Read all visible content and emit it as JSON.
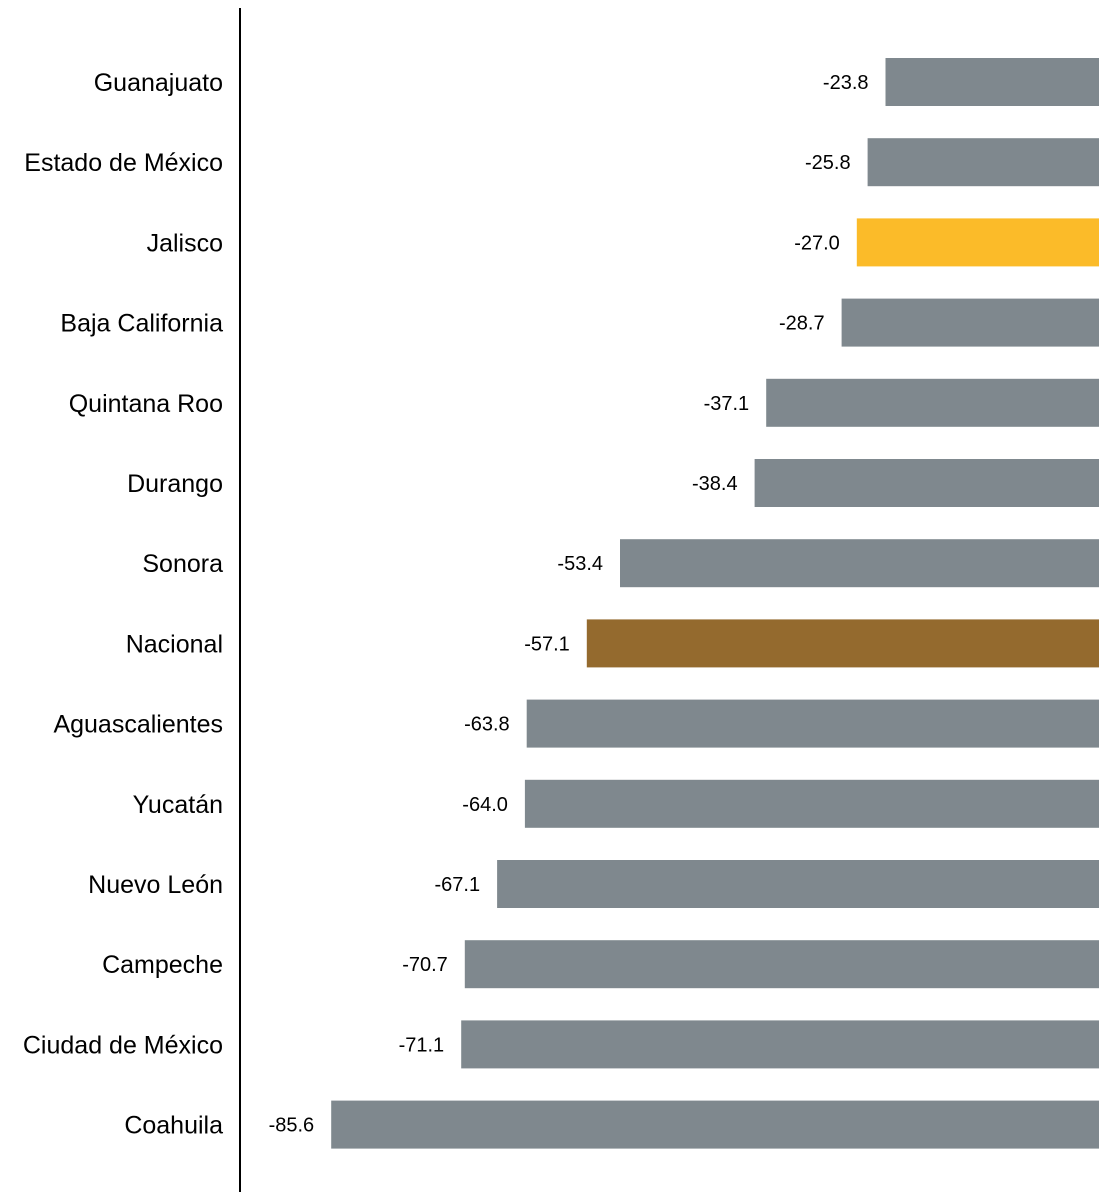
{
  "chart_data": {
    "type": "bar",
    "orientation": "horizontal",
    "categories": [
      "Guanajuato",
      "Estado de México",
      "Jalisco",
      "Baja California",
      "Quintana Roo",
      "Durango",
      "Sonora",
      "Nacional",
      "Aguascalientes",
      "Yucatán",
      "Nuevo León",
      "Campeche",
      "Ciudad de México",
      "Coahuila"
    ],
    "values": [
      -23.8,
      -25.8,
      -27.0,
      -28.7,
      -37.1,
      -38.4,
      -53.4,
      -57.1,
      -63.8,
      -64.0,
      -67.1,
      -70.7,
      -71.1,
      -85.6
    ],
    "value_labels": [
      "-23.8",
      "-25.8",
      "-27.0",
      "-28.7",
      "-37.1",
      "-38.4",
      "-53.4",
      "-57.1",
      "-63.8",
      "-64.0",
      "-67.1",
      "-70.7",
      "-71.1",
      "-85.6"
    ],
    "colors": {
      "default": "#7f888e",
      "Jalisco": "#fbbb29",
      "Nacional": "#946a2e"
    },
    "xlim": [
      -100,
      0
    ],
    "title": "",
    "xlabel": "",
    "ylabel": "",
    "grid": false,
    "legend": "none"
  }
}
